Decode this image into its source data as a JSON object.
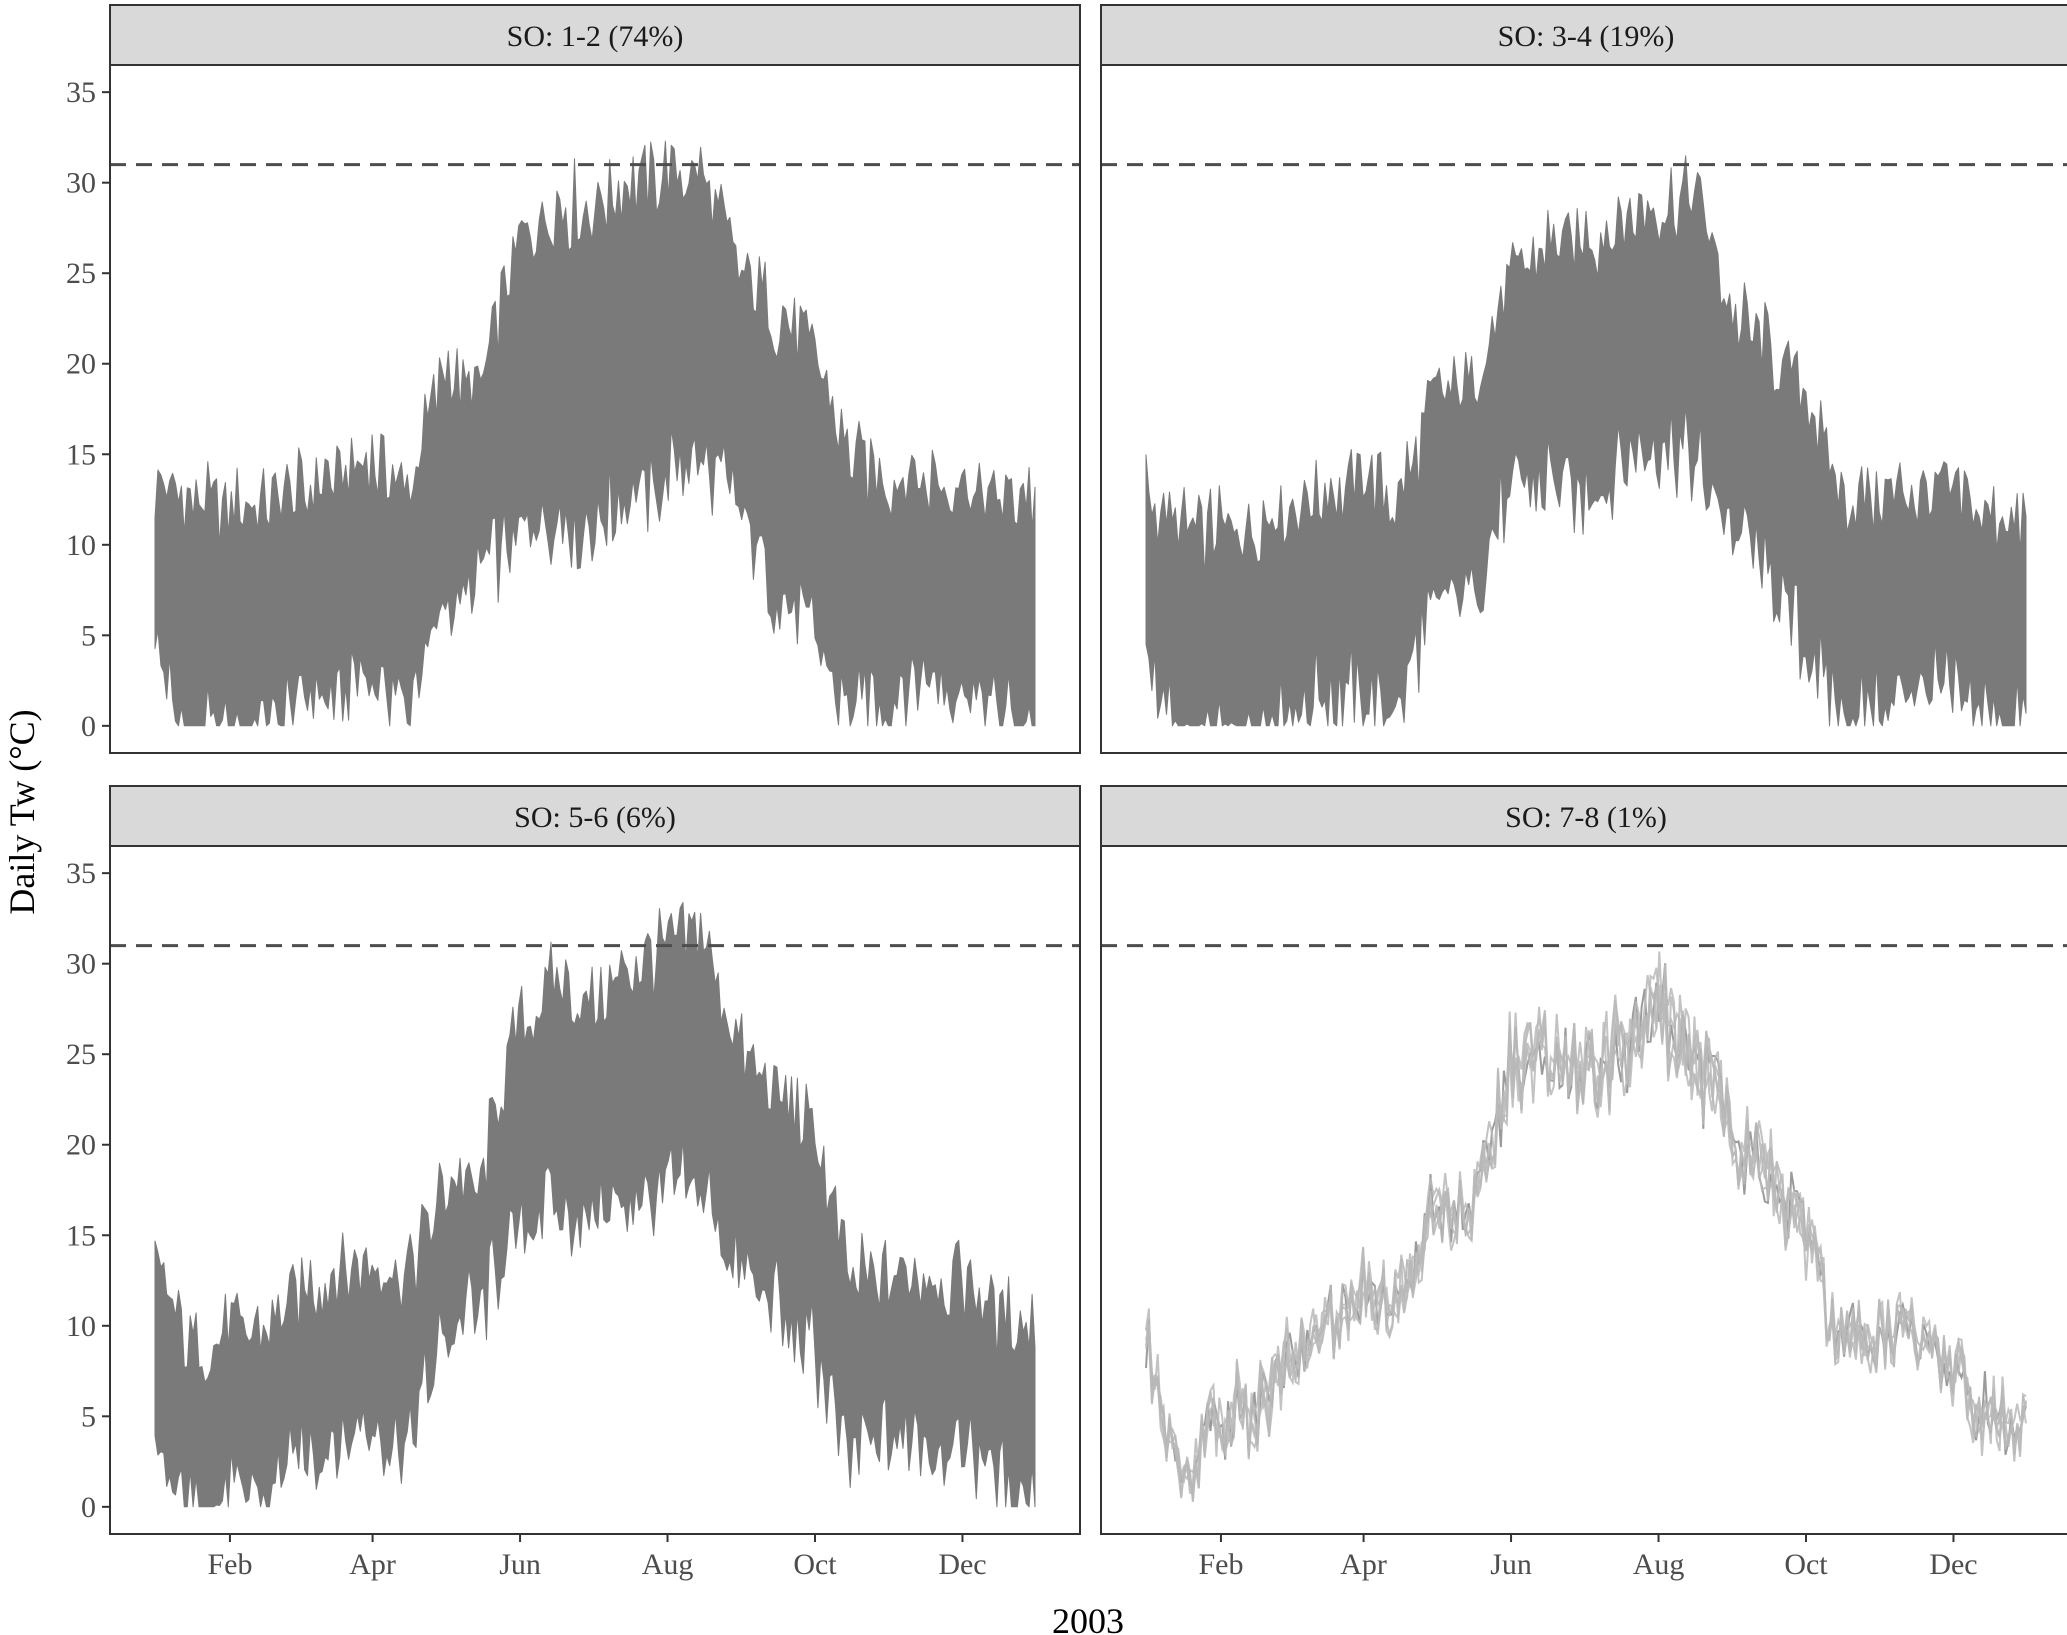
{
  "figure": {
    "ylabel": "Daily Tw (°C)",
    "xlabel": "2003",
    "colors": {
      "band": "#7a7a7a",
      "band_light": "#9a9a9a",
      "strip": "#d9d9d9",
      "threshold": "#4d4d4d",
      "frame": "#333333"
    }
  },
  "chart_data": [
    {
      "type": "area",
      "title": "SO: 1-2 (74%)",
      "threshold": 31,
      "ylim": [
        -1.5,
        36.5
      ],
      "yticks": [
        "0",
        "5",
        "10",
        "15",
        "20",
        "25",
        "30",
        "35"
      ],
      "xticks": [
        "Feb",
        "Apr",
        "Jun",
        "Aug",
        "Oct",
        "Dec"
      ],
      "x": [
        "Jan 1",
        "Jan 15",
        "Feb 1",
        "Feb 15",
        "Mar 1",
        "Mar 15",
        "Apr 1",
        "Apr 15",
        "May 1",
        "May 15",
        "Jun 1",
        "Jun 15",
        "Jul 1",
        "Jul 15",
        "Aug 1",
        "Aug 15",
        "Sep 1",
        "Sep 15",
        "Oct 1",
        "Oct 15",
        "Nov 1",
        "Nov 15",
        "Dec 1",
        "Dec 15",
        "Dec 31"
      ],
      "series": [
        {
          "values": [
            [
              6,
              12.5
            ],
            [
              0,
              11.5
            ],
            [
              1,
              11.5
            ],
            [
              1,
              11.5
            ],
            [
              2,
              12
            ],
            [
              3,
              13
            ],
            [
              4,
              14
            ],
            [
              2,
              12
            ],
            [
              8,
              19
            ],
            [
              9,
              18
            ],
            [
              12,
              26
            ],
            [
              13,
              28
            ],
            [
              12,
              28
            ],
            [
              14,
              29
            ],
            [
              15,
              30
            ],
            [
              16,
              30
            ],
            [
              13,
              24
            ],
            [
              9,
              22
            ],
            [
              6,
              20
            ],
            [
              2,
              14
            ],
            [
              3,
              13
            ],
            [
              4,
              13
            ],
            [
              3,
              12.5
            ],
            [
              2,
              12
            ],
            [
              1,
              12
            ]
          ]
        }
      ]
    },
    {
      "type": "area",
      "title": "SO: 3-4 (19%)",
      "threshold": 31,
      "ylim": [
        -1.5,
        36.5
      ],
      "yticks": [
        "0",
        "5",
        "10",
        "15",
        "20",
        "25",
        "30",
        "35"
      ],
      "xticks": [
        "Feb",
        "Apr",
        "Jun",
        "Aug",
        "Oct",
        "Dec"
      ],
      "x": [
        "Jan 1",
        "Jan 15",
        "Feb 1",
        "Feb 15",
        "Mar 1",
        "Mar 15",
        "Apr 1",
        "Apr 15",
        "May 1",
        "May 15",
        "Jun 1",
        "Jun 15",
        "Jul 1",
        "Jul 15",
        "Aug 1",
        "Aug 15",
        "Sep 1",
        "Sep 15",
        "Oct 1",
        "Oct 15",
        "Nov 1",
        "Nov 15",
        "Dec 1",
        "Dec 15",
        "Dec 31"
      ],
      "series": [
        {
          "values": [
            [
              5,
              12.5
            ],
            [
              0,
              10
            ],
            [
              0,
              10
            ],
            [
              1,
              10.5
            ],
            [
              2,
              11.5
            ],
            [
              3,
              12
            ],
            [
              3,
              13
            ],
            [
              2,
              12
            ],
            [
              8,
              17
            ],
            [
              9,
              18
            ],
            [
              14,
              24
            ],
            [
              15,
              26
            ],
            [
              14,
              26
            ],
            [
              15,
              27
            ],
            [
              17,
              28
            ],
            [
              16,
              29
            ],
            [
              12,
              22
            ],
            [
              9,
              20
            ],
            [
              6,
              18
            ],
            [
              2,
              12
            ],
            [
              2,
              12
            ],
            [
              3,
              12
            ],
            [
              3,
              12
            ],
            [
              2,
              11
            ],
            [
              1,
              10.5
            ]
          ]
        }
      ]
    },
    {
      "type": "area",
      "title": "SO: 5-6 (6%)",
      "threshold": 31,
      "ylim": [
        -1.5,
        36.5
      ],
      "yticks": [
        "0",
        "5",
        "10",
        "15",
        "20",
        "25",
        "30",
        "35"
      ],
      "xticks": [
        "Feb",
        "Apr",
        "Jun",
        "Aug",
        "Oct",
        "Dec"
      ],
      "x": [
        "Jan 1",
        "Jan 15",
        "Feb 1",
        "Feb 15",
        "Mar 1",
        "Mar 15",
        "Apr 1",
        "Apr 15",
        "May 1",
        "May 15",
        "Jun 1",
        "Jun 15",
        "Jul 1",
        "Jul 15",
        "Aug 1",
        "Aug 15",
        "Sep 1",
        "Sep 15",
        "Oct 1",
        "Oct 15",
        "Nov 1",
        "Nov 15",
        "Dec 1",
        "Dec 15",
        "Dec 31"
      ],
      "series": [
        {
          "values": [
            [
              4,
              12.5
            ],
            [
              1,
              8
            ],
            [
              2,
              9
            ],
            [
              2,
              9
            ],
            [
              4,
              11
            ],
            [
              5,
              12
            ],
            [
              6,
              13
            ],
            [
              4,
              12
            ],
            [
              11,
              17
            ],
            [
              12,
              17
            ],
            [
              17,
              26
            ],
            [
              18,
              28
            ],
            [
              17,
              27
            ],
            [
              18,
              29
            ],
            [
              19,
              30
            ],
            [
              19,
              31
            ],
            [
              14,
              24
            ],
            [
              12,
              22
            ],
            [
              10,
              20
            ],
            [
              4,
              12
            ],
            [
              5,
              12
            ],
            [
              5,
              12
            ],
            [
              5,
              12
            ],
            [
              3,
              10
            ],
            [
              2,
              9
            ]
          ]
        }
      ]
    },
    {
      "type": "line",
      "title": "SO: 7-8 (1%)",
      "threshold": 31,
      "ylim": [
        -1.5,
        36.5
      ],
      "yticks": [
        "0",
        "5",
        "10",
        "15",
        "20",
        "25",
        "30",
        "35"
      ],
      "xticks": [
        "Feb",
        "Apr",
        "Jun",
        "Aug",
        "Oct",
        "Dec"
      ],
      "x": [
        "Jan 1",
        "Jan 15",
        "Feb 1",
        "Feb 15",
        "Mar 1",
        "Mar 15",
        "Apr 1",
        "Apr 15",
        "May 1",
        "May 15",
        "Jun 1",
        "Jun 15",
        "Jul 1",
        "Jul 15",
        "Aug 1",
        "Aug 15",
        "Sep 1",
        "Sep 15",
        "Oct 1",
        "Oct 15",
        "Nov 1",
        "Nov 15",
        "Dec 1",
        "Dec 15",
        "Dec 31"
      ],
      "series": [
        {
          "values": [
            [
              7.5,
              11.5
            ],
            [
              0,
              2
            ],
            [
              3,
              7
            ],
            [
              3,
              8
            ],
            [
              6,
              10
            ],
            [
              8,
              11
            ],
            [
              10,
              14
            ],
            [
              9,
              13
            ],
            [
              15,
              19
            ],
            [
              14,
              17
            ],
            [
              22,
              27
            ],
            [
              23,
              27
            ],
            [
              22,
              26
            ],
            [
              22,
              28
            ],
            [
              24,
              31
            ],
            [
              22,
              28
            ],
            [
              18,
              23
            ],
            [
              16,
              21
            ],
            [
              13,
              17
            ],
            [
              7,
              11
            ],
            [
              8,
              11
            ],
            [
              8,
              11
            ],
            [
              6,
              9
            ],
            [
              2.5,
              7
            ],
            [
              2.5,
              6
            ]
          ]
        }
      ]
    }
  ]
}
